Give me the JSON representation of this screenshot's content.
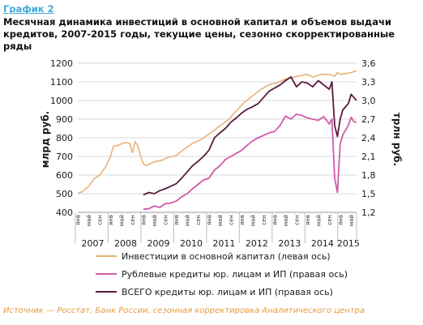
{
  "header": {
    "label": "График 2",
    "title": "Месячная динамика инвестиций в основной капитал и объемов выдачи кредитов, 2007-2015 годы, текущие цены, сезонно скорректированные ряды"
  },
  "footer": {
    "source": "Источник — Росстат, Банк России, сезонная корректировка Аналитического центра"
  },
  "chart_data": {
    "type": "line",
    "ylabel_left": "млрд руб.",
    "ylabel_right": "трлн руб.",
    "ylim_left": [
      400,
      1200
    ],
    "ylim_right": [
      1.2,
      3.6
    ],
    "yticks_left": [
      "400",
      "500",
      "600",
      "700",
      "800",
      "900",
      "1000",
      "1100",
      "1200"
    ],
    "yticks_right": [
      "1,2",
      "1,5",
      "1,8",
      "2,1",
      "2,4",
      "2,7",
      "3,0",
      "3,3",
      "3,6"
    ],
    "month_labels": [
      "янв",
      "май",
      "сен"
    ],
    "years": [
      "2007",
      "2008",
      "2009",
      "2010",
      "2011",
      "2012",
      "2013",
      "2014",
      "2015"
    ],
    "x_start": "2007-01",
    "x_end": "2015-07",
    "grid": true,
    "legend_position": "bottom",
    "series": [
      {
        "name": "Инвестиции в основной капитал (левая ось)",
        "axis": "left",
        "color": "#e8b27a",
        "points": [
          [
            "2007-01",
            500
          ],
          [
            "2007-03",
            515
          ],
          [
            "2007-05",
            540
          ],
          [
            "2007-07",
            580
          ],
          [
            "2007-09",
            600
          ],
          [
            "2007-11",
            640
          ],
          [
            "2008-01",
            700
          ],
          [
            "2008-02",
            755
          ],
          [
            "2008-04",
            760
          ],
          [
            "2008-06",
            775
          ],
          [
            "2008-08",
            770
          ],
          [
            "2008-09",
            720
          ],
          [
            "2008-10",
            780
          ],
          [
            "2008-11",
            755
          ],
          [
            "2008-12",
            700
          ],
          [
            "2009-01",
            660
          ],
          [
            "2009-02",
            650
          ],
          [
            "2009-04",
            665
          ],
          [
            "2009-06",
            675
          ],
          [
            "2009-08",
            680
          ],
          [
            "2009-10",
            695
          ],
          [
            "2009-12",
            700
          ],
          [
            "2010-01",
            705
          ],
          [
            "2010-04",
            740
          ],
          [
            "2010-07",
            770
          ],
          [
            "2010-10",
            790
          ],
          [
            "2010-12",
            810
          ],
          [
            "2011-02",
            830
          ],
          [
            "2011-05",
            865
          ],
          [
            "2011-08",
            895
          ],
          [
            "2011-11",
            945
          ],
          [
            "2012-02",
            990
          ],
          [
            "2012-05",
            1025
          ],
          [
            "2012-08",
            1060
          ],
          [
            "2012-11",
            1085
          ],
          [
            "2013-02",
            1095
          ],
          [
            "2013-05",
            1115
          ],
          [
            "2013-08",
            1125
          ],
          [
            "2013-11",
            1135
          ],
          [
            "2014-01",
            1140
          ],
          [
            "2014-03",
            1125
          ],
          [
            "2014-06",
            1140
          ],
          [
            "2014-09",
            1140
          ],
          [
            "2014-11",
            1130
          ],
          [
            "2014-12",
            1150
          ],
          [
            "2015-01",
            1140
          ],
          [
            "2015-03",
            1145
          ],
          [
            "2015-05",
            1150
          ],
          [
            "2015-07",
            1160
          ]
        ]
      },
      {
        "name": "Рублевые кредиты юр. лицам и ИП (правая ось)",
        "axis": "right",
        "color": "#d05aa8",
        "points": [
          [
            "2009-01",
            1.25
          ],
          [
            "2009-03",
            1.26
          ],
          [
            "2009-05",
            1.3
          ],
          [
            "2009-07",
            1.28
          ],
          [
            "2009-09",
            1.34
          ],
          [
            "2009-11",
            1.35
          ],
          [
            "2010-01",
            1.38
          ],
          [
            "2010-03",
            1.45
          ],
          [
            "2010-05",
            1.5
          ],
          [
            "2010-07",
            1.58
          ],
          [
            "2010-09",
            1.65
          ],
          [
            "2010-11",
            1.72
          ],
          [
            "2011-01",
            1.75
          ],
          [
            "2011-03",
            1.88
          ],
          [
            "2011-05",
            1.95
          ],
          [
            "2011-07",
            2.05
          ],
          [
            "2011-09",
            2.1
          ],
          [
            "2011-11",
            2.15
          ],
          [
            "2012-01",
            2.2
          ],
          [
            "2012-03",
            2.28
          ],
          [
            "2012-05",
            2.35
          ],
          [
            "2012-07",
            2.4
          ],
          [
            "2012-09",
            2.44
          ],
          [
            "2012-11",
            2.48
          ],
          [
            "2013-01",
            2.5
          ],
          [
            "2013-03",
            2.6
          ],
          [
            "2013-05",
            2.75
          ],
          [
            "2013-07",
            2.7
          ],
          [
            "2013-09",
            2.78
          ],
          [
            "2013-11",
            2.76
          ],
          [
            "2014-01",
            2.72
          ],
          [
            "2014-03",
            2.7
          ],
          [
            "2014-05",
            2.68
          ],
          [
            "2014-07",
            2.74
          ],
          [
            "2014-09",
            2.62
          ],
          [
            "2014-10",
            2.7
          ],
          [
            "2014-11",
            1.75
          ],
          [
            "2014-12",
            1.52
          ],
          [
            "2015-01",
            2.3
          ],
          [
            "2015-02",
            2.45
          ],
          [
            "2015-04",
            2.6
          ],
          [
            "2015-05",
            2.73
          ],
          [
            "2015-06",
            2.66
          ],
          [
            "2015-07",
            2.65
          ]
        ]
      },
      {
        "name": "ВСЕГО кредиты юр. лицам и ИП (правая ось)",
        "axis": "right",
        "color": "#5a1a3d",
        "points": [
          [
            "2009-01",
            1.48
          ],
          [
            "2009-03",
            1.52
          ],
          [
            "2009-05",
            1.5
          ],
          [
            "2009-07",
            1.55
          ],
          [
            "2009-09",
            1.58
          ],
          [
            "2009-11",
            1.62
          ],
          [
            "2010-01",
            1.66
          ],
          [
            "2010-03",
            1.75
          ],
          [
            "2010-05",
            1.85
          ],
          [
            "2010-07",
            1.95
          ],
          [
            "2010-09",
            2.02
          ],
          [
            "2010-11",
            2.1
          ],
          [
            "2011-01",
            2.2
          ],
          [
            "2011-03",
            2.4
          ],
          [
            "2011-05",
            2.48
          ],
          [
            "2011-07",
            2.55
          ],
          [
            "2011-09",
            2.65
          ],
          [
            "2011-11",
            2.72
          ],
          [
            "2012-01",
            2.8
          ],
          [
            "2012-03",
            2.86
          ],
          [
            "2012-05",
            2.9
          ],
          [
            "2012-07",
            2.95
          ],
          [
            "2012-09",
            3.05
          ],
          [
            "2012-11",
            3.15
          ],
          [
            "2013-01",
            3.2
          ],
          [
            "2013-03",
            3.25
          ],
          [
            "2013-05",
            3.32
          ],
          [
            "2013-07",
            3.38
          ],
          [
            "2013-09",
            3.22
          ],
          [
            "2013-11",
            3.3
          ],
          [
            "2014-01",
            3.28
          ],
          [
            "2014-03",
            3.22
          ],
          [
            "2014-05",
            3.32
          ],
          [
            "2014-07",
            3.25
          ],
          [
            "2014-09",
            3.18
          ],
          [
            "2014-10",
            3.3
          ],
          [
            "2014-11",
            2.6
          ],
          [
            "2014-12",
            2.42
          ],
          [
            "2015-01",
            2.7
          ],
          [
            "2015-02",
            2.85
          ],
          [
            "2015-04",
            2.95
          ],
          [
            "2015-05",
            3.1
          ],
          [
            "2015-06",
            3.05
          ],
          [
            "2015-07",
            3.0
          ]
        ]
      }
    ]
  }
}
